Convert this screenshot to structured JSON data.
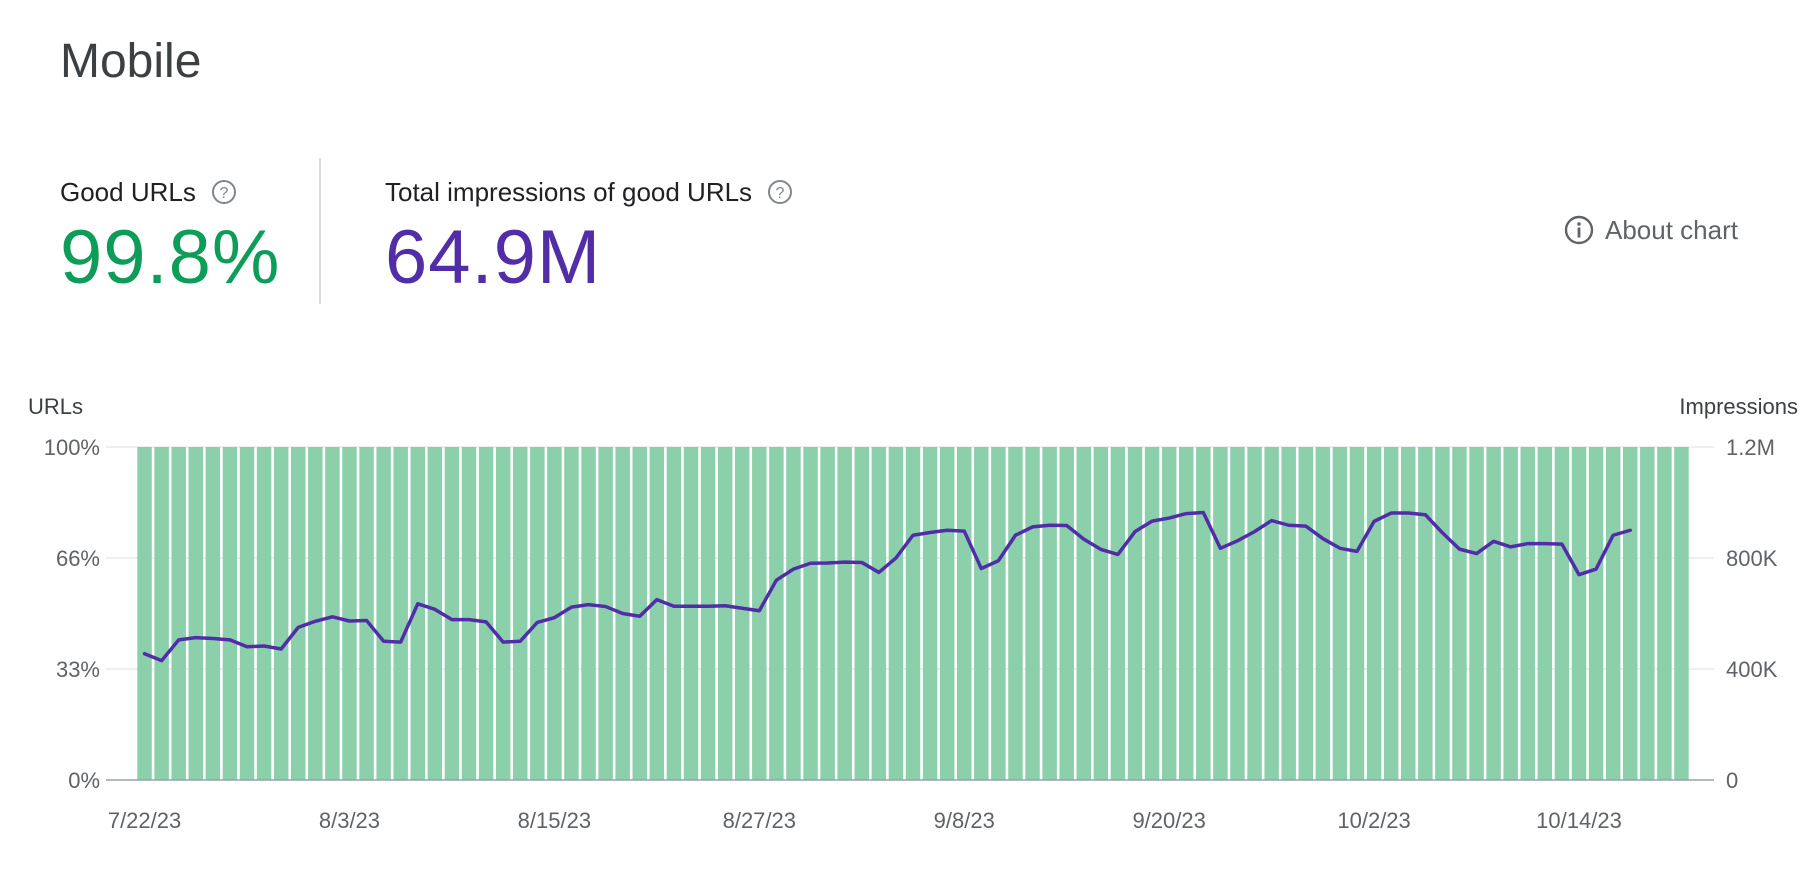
{
  "title": "Mobile",
  "metrics": {
    "good_urls": {
      "label": "Good URLs",
      "value": "99.8%",
      "color": "#0d9d58"
    },
    "impressions": {
      "label": "Total impressions of good URLs",
      "value": "64.9M",
      "color": "#512da8"
    }
  },
  "about_chart": {
    "label": "About chart",
    "icon": "info-icon"
  },
  "chart_data": {
    "type": "bar",
    "left_axis_title": "URLs",
    "right_axis_title": "Impressions",
    "y_left": {
      "ticks": [
        "0%",
        "33%",
        "66%",
        "100%"
      ],
      "range": [
        0,
        100
      ]
    },
    "y_right": {
      "ticks": [
        "0",
        "400K",
        "800K",
        "1.2M"
      ],
      "range": [
        0,
        1200000
      ]
    },
    "x_ticks": [
      "7/22/23",
      "8/3/23",
      "8/15/23",
      "8/27/23",
      "9/8/23",
      "9/20/23",
      "10/2/23",
      "10/14/23"
    ],
    "first_date": "2023-07-22",
    "last_date": "2023-10-20",
    "series": [
      {
        "name": "Good URLs",
        "kind": "bar",
        "axis": "left",
        "color": "#8ccfab",
        "values": [
          100,
          100,
          100,
          100,
          100,
          100,
          100,
          100,
          100,
          100,
          100,
          100,
          100,
          100,
          100,
          100,
          100,
          100,
          100,
          100,
          100,
          100,
          100,
          100,
          100,
          100,
          100,
          100,
          100,
          100,
          100,
          100,
          100,
          100,
          100,
          100,
          100,
          100,
          100,
          100,
          100,
          100,
          100,
          100,
          100,
          100,
          100,
          100,
          100,
          100,
          100,
          100,
          100,
          100,
          100,
          100,
          100,
          100,
          100,
          100,
          100,
          100,
          100,
          100,
          100,
          100,
          100,
          100,
          100,
          100,
          100,
          100,
          100,
          100,
          100,
          100,
          100,
          100,
          100,
          100,
          100,
          100,
          100,
          100,
          100,
          100,
          100,
          100,
          100,
          100,
          100
        ]
      },
      {
        "name": "Total impressions of good URLs",
        "kind": "line",
        "axis": "right",
        "color": "#512da8",
        "values": [
          455000,
          430000,
          505000,
          513000,
          510000,
          505000,
          480000,
          483000,
          472000,
          550000,
          572000,
          588000,
          573000,
          575000,
          500000,
          497000,
          635000,
          615000,
          578000,
          578000,
          570000,
          497000,
          500000,
          568000,
          585000,
          623000,
          632000,
          625000,
          600000,
          590000,
          650000,
          626000,
          626000,
          626000,
          628000,
          619000,
          610000,
          720000,
          760000,
          781000,
          782000,
          785000,
          784000,
          748000,
          800000,
          882000,
          892000,
          900000,
          897000,
          762000,
          790000,
          882000,
          912000,
          918000,
          917000,
          868000,
          831000,
          813000,
          895000,
          933000,
          944000,
          960000,
          964000,
          835000,
          862000,
          895000,
          935000,
          918000,
          915000,
          870000,
          835000,
          824000,
          932000,
          962000,
          962000,
          956000,
          891000,
          832000,
          816000,
          860000,
          840000,
          852000,
          852000,
          850000,
          740000,
          760000,
          882000,
          900000
        ]
      }
    ]
  }
}
